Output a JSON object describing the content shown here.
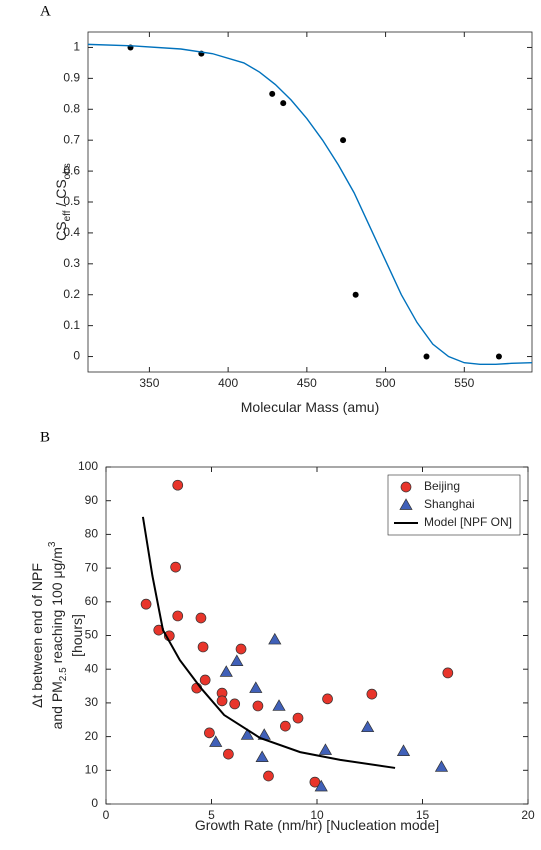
{
  "chart_data": [
    {
      "type": "scatter",
      "panel_label": "A",
      "xlabel": [
        {
          "text": "Molecular Mass (amu)"
        }
      ],
      "ylabel": [
        [
          {
            "text": "CS"
          },
          {
            "text": "eff",
            "sub": true
          },
          {
            "text": " / CS"
          },
          {
            "text": "obs",
            "sub": true
          }
        ]
      ],
      "xlim": [
        311,
        593
      ],
      "ylim": [
        -0.05,
        1.05
      ],
      "xticks": [
        350,
        400,
        450,
        500,
        550
      ],
      "yticks": [
        0,
        0.1,
        0.2,
        0.3,
        0.4,
        0.5,
        0.6,
        0.7,
        0.8,
        0.9,
        1
      ],
      "box": true,
      "series": [
        {
          "type": "scatter",
          "marker": "dot",
          "color": "#000000",
          "x": [
            338,
            383,
            428,
            435,
            473,
            481,
            526,
            572
          ],
          "values": [
            1,
            0.98,
            0.85,
            0.82,
            0.7,
            0.2,
            0,
            0
          ]
        },
        {
          "type": "line",
          "color": "#0072bd",
          "x": [
            311,
            340,
            370,
            390,
            410,
            420,
            430,
            440,
            450,
            460,
            470,
            480,
            490,
            500,
            510,
            520,
            530,
            540,
            550,
            560,
            570,
            580,
            593
          ],
          "values": [
            1.01,
            1.005,
            0.995,
            0.98,
            0.95,
            0.92,
            0.88,
            0.83,
            0.77,
            0.7,
            0.62,
            0.53,
            0.42,
            0.31,
            0.2,
            0.11,
            0.04,
            0,
            -0.02,
            -0.025,
            -0.025,
            -0.022,
            -0.02
          ]
        }
      ]
    },
    {
      "type": "scatter",
      "panel_label": "B",
      "xlabel": [
        {
          "text": "Growth Rate (nm/hr) [Nucleation mode]"
        }
      ],
      "ylabel": [
        [
          {
            "text": "Δt between end of NPF"
          }
        ],
        [
          {
            "text": "and PM"
          },
          {
            "text": "2.5",
            "sub": true
          },
          {
            "text": " reaching 100 μg/m"
          },
          {
            "text": "3",
            "sup": true
          }
        ],
        [
          {
            "text": "[hours]"
          }
        ]
      ],
      "xlim": [
        0,
        20
      ],
      "ylim": [
        0,
        100
      ],
      "xticks": [
        0,
        5,
        10,
        15,
        20
      ],
      "yticks": [
        0,
        10,
        20,
        30,
        40,
        50,
        60,
        70,
        80,
        90,
        100
      ],
      "box": true,
      "legend": "upper right",
      "series": [
        {
          "name": "Beijing",
          "type": "scatter",
          "marker": "circle",
          "color": "#e8352b",
          "x": [
            1.9,
            2.5,
            3.0,
            3.4,
            3.3,
            3.4,
            4.3,
            4.5,
            4.6,
            4.7,
            4.9,
            5.5,
            5.5,
            5.8,
            6.1,
            6.4,
            7.2,
            7.7,
            8.5,
            9.1,
            9.9,
            10.5,
            12.6,
            16.2
          ],
          "values": [
            59.3,
            51.6,
            49.9,
            94.6,
            70.3,
            55.8,
            34.4,
            55.2,
            46.6,
            36.8,
            21.1,
            32.9,
            30.6,
            14.8,
            29.7,
            46,
            29.1,
            8.3,
            23.1,
            25.5,
            6.5,
            31.2,
            32.6,
            38.9
          ]
        },
        {
          "name": "Shanghai",
          "type": "scatter",
          "marker": "triangle",
          "color": "#4060b8",
          "x": [
            5.2,
            5.7,
            6.2,
            6.7,
            7.1,
            7.5,
            7.4,
            8.0,
            8.2,
            10.2,
            10.4,
            12.4,
            14.1,
            15.9
          ],
          "values": [
            18.4,
            39.2,
            42.4,
            20.5,
            34.4,
            20.5,
            13.9,
            48.8,
            29.1,
            5.2,
            16,
            22.8,
            15.7,
            11
          ]
        },
        {
          "name": "Model [NPF ON]",
          "type": "line",
          "color": "#000000",
          "x": [
            1.75,
            2.2,
            2.7,
            3.5,
            4.5,
            5.6,
            7.3,
            9.2,
            11.1,
            13.7
          ],
          "values": [
            85.2,
            67.7,
            51.6,
            42.7,
            34.4,
            26.4,
            19.6,
            15.4,
            13.1,
            10.7
          ]
        }
      ]
    }
  ]
}
